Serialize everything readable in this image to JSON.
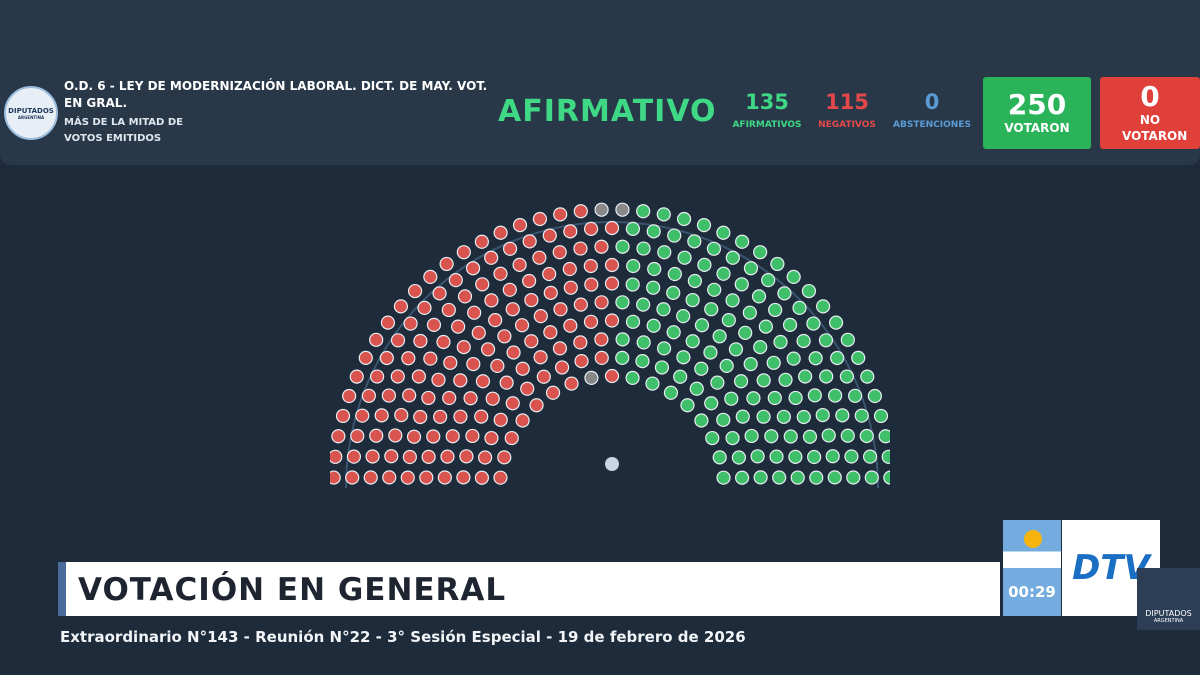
{
  "header": {
    "logo": {
      "line1": "DIPUTADOS",
      "line2": "ARGENTINA"
    },
    "title": "O.D. 6 - LEY DE MODERNIZACIÓN LABORAL. DICT. DE MAY. VOT. EN GRAL.",
    "subtitle": "MÁS DE LA MITAD DE VOTOS EMITIDOS",
    "result": "AFIRMATIVO",
    "counts": [
      {
        "value": 135,
        "label": "AFIRMATIVOS"
      },
      {
        "value": 115,
        "label": "NEGATIVOS"
      },
      {
        "value": 0,
        "label": "ABSTENCIONES"
      }
    ],
    "voted": {
      "value": 250,
      "label": "VOTARON"
    },
    "not_voted": {
      "value": 0,
      "label": "NO VOTARON"
    }
  },
  "banner": {
    "title": "VOTACIÓN EN GENERAL",
    "timer": "00:29",
    "channel": "DTV",
    "corner_logo": {
      "line1": "DIPUTADOS",
      "line2": "ARGENTINA"
    }
  },
  "footer": "Extraordinario N°143 - Reunión N°22 - 3° Sesión Especial - 19 de febrero de 2026"
}
